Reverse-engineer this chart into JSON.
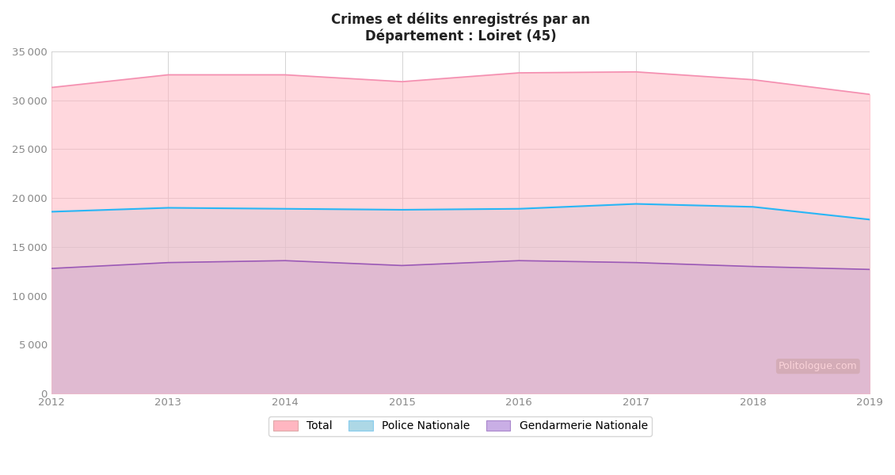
{
  "years": [
    2012,
    2013,
    2014,
    2015,
    2016,
    2017,
    2018,
    2019
  ],
  "total": [
    31300,
    32600,
    32600,
    31900,
    32800,
    32900,
    32100,
    30600
  ],
  "police": [
    18600,
    19000,
    18900,
    18800,
    18900,
    19400,
    19100,
    17800
  ],
  "gendarmerie": [
    12800,
    13400,
    13600,
    13100,
    13600,
    13400,
    13000,
    12700
  ],
  "title_line1": "Crimes et délits enregistrés par an",
  "title_line2": "Département : Loiret (45)",
  "ylim": [
    0,
    35000
  ],
  "yticks": [
    0,
    5000,
    10000,
    15000,
    20000,
    25000,
    30000,
    35000
  ],
  "fill_total_color": "#ffb6c1",
  "fill_police_color": "#add8e6",
  "fill_gendarmerie_color": "#c9aee5",
  "line_total_color": "#f48fb1",
  "line_police_color": "#29b6f6",
  "line_gendarmerie_color": "#9b59b6",
  "legend_labels": [
    "Total",
    "Police Nationale",
    "Gendarmerie Nationale"
  ],
  "background_color": "#ffffff",
  "watermark_text": "Politologue.com",
  "grid_color": "#cccccc",
  "tick_label_color": "#888888"
}
